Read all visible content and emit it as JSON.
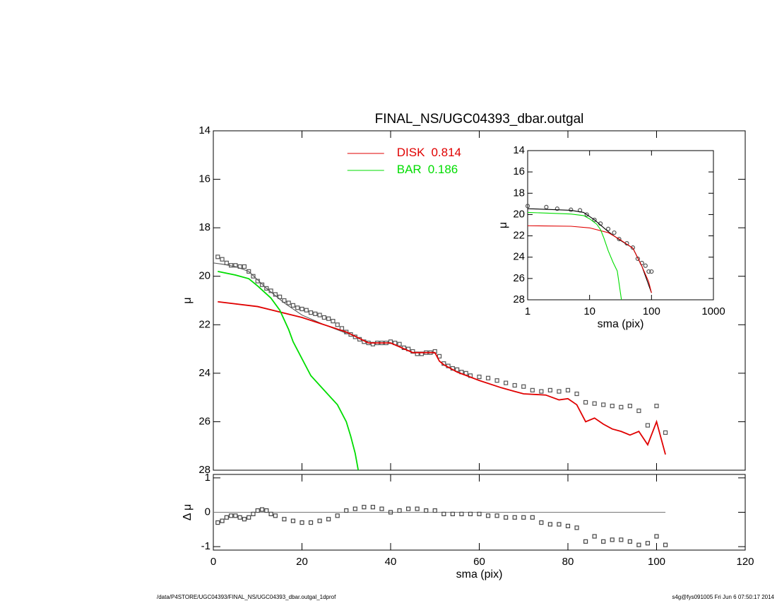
{
  "chart_data": [
    {
      "type": "line",
      "title": "FINAL_NS/UGC04393_dbar.outgal",
      "ylabel": "μ",
      "xlim": [
        0,
        120
      ],
      "ylim": [
        28,
        14
      ],
      "xticks": [
        0,
        20,
        40,
        60,
        80,
        100,
        120
      ],
      "yticks": [
        14,
        16,
        18,
        20,
        22,
        24,
        26,
        28
      ],
      "xticklabels": false,
      "legend": "upper-center",
      "series": [
        {
          "color": "#555555",
          "style": "line",
          "x": [
            0,
            2,
            5,
            8,
            12,
            16,
            20,
            25,
            30
          ],
          "values": [
            19.45,
            19.5,
            19.6,
            19.8,
            20.5,
            21.1,
            21.6,
            22.0,
            22.35
          ]
        },
        {
          "color": "#555555",
          "style": "square",
          "x": [
            1,
            2,
            3,
            4,
            5,
            6,
            7,
            8,
            9,
            10,
            11,
            12,
            13,
            14,
            15,
            16,
            17,
            18,
            19,
            20,
            21,
            22,
            23,
            24,
            25,
            26,
            27,
            28,
            29,
            30,
            31,
            32,
            33,
            34,
            35,
            36,
            37,
            38,
            39,
            40,
            41,
            42,
            43,
            44,
            45,
            46,
            47,
            48,
            49,
            50,
            51,
            52,
            53,
            54,
            55,
            56,
            57,
            58,
            60,
            62,
            64,
            66,
            68,
            70,
            72,
            74,
            76,
            78,
            80,
            82,
            84,
            86,
            88,
            90,
            92,
            94,
            96,
            98,
            100,
            102
          ],
          "values": [
            19.2,
            19.3,
            19.45,
            19.55,
            19.55,
            19.6,
            19.6,
            19.8,
            20.0,
            20.2,
            20.35,
            20.5,
            20.6,
            20.75,
            20.85,
            21.0,
            21.1,
            21.2,
            21.3,
            21.35,
            21.4,
            21.5,
            21.55,
            21.6,
            21.7,
            21.75,
            21.85,
            22.0,
            22.15,
            22.3,
            22.4,
            22.5,
            22.6,
            22.7,
            22.75,
            22.8,
            22.75,
            22.75,
            22.75,
            22.7,
            22.75,
            22.8,
            22.95,
            23.0,
            23.1,
            23.2,
            23.2,
            23.15,
            23.15,
            23.1,
            23.3,
            23.6,
            23.7,
            23.8,
            23.85,
            23.95,
            24.0,
            24.1,
            24.15,
            24.2,
            24.3,
            24.4,
            24.5,
            24.55,
            24.7,
            24.75,
            24.7,
            24.75,
            24.7,
            24.85,
            25.2,
            25.25,
            25.3,
            25.35,
            25.4,
            25.35,
            25.55,
            26.15,
            25.35,
            26.45
          ]
        },
        {
          "name": "DISK",
          "fraction": 0.814,
          "color": "#e00000",
          "style": "line",
          "x": [
            1,
            10,
            20,
            30,
            35,
            40,
            45,
            50,
            51,
            52,
            55,
            60,
            65,
            68,
            70,
            75,
            78,
            80,
            82,
            84,
            86,
            88,
            90,
            92,
            94,
            96,
            98,
            100,
            102
          ],
          "values": [
            21.05,
            21.25,
            21.7,
            22.3,
            22.75,
            22.75,
            23.15,
            23.15,
            23.5,
            23.65,
            23.95,
            24.3,
            24.6,
            24.75,
            24.85,
            24.9,
            25.1,
            25.05,
            25.3,
            26.0,
            25.85,
            26.1,
            26.3,
            26.4,
            26.55,
            26.4,
            26.95,
            26.0,
            27.35
          ]
        },
        {
          "name": "BAR",
          "fraction": 0.186,
          "color": "#00dd00",
          "style": "line",
          "x": [
            1,
            5,
            8,
            10,
            13,
            15,
            17,
            18,
            20,
            22,
            24,
            26,
            28,
            30,
            31,
            32,
            32.7
          ],
          "values": [
            19.8,
            19.95,
            20.1,
            20.4,
            20.9,
            21.4,
            22.2,
            22.7,
            23.4,
            24.1,
            24.5,
            24.9,
            25.3,
            26.0,
            26.6,
            27.3,
            28
          ]
        }
      ]
    },
    {
      "type": "line",
      "xlabel": "sma (pix)",
      "ylabel": "Δ μ",
      "xlim": [
        0,
        120
      ],
      "ylim": [
        -1.1,
        1.1
      ],
      "xticks": [
        0,
        20,
        40,
        60,
        80,
        100,
        120
      ],
      "yticks": [
        -1,
        0,
        1
      ],
      "series": [
        {
          "color": "#777777",
          "style": "line",
          "x": [
            0,
            102
          ],
          "values": [
            0,
            0
          ]
        },
        {
          "color": "#444444",
          "style": "square",
          "x": [
            1,
            2,
            3,
            4,
            5,
            6,
            7,
            8,
            9,
            10,
            11,
            12,
            13,
            14,
            16,
            18,
            20,
            22,
            24,
            26,
            28,
            30,
            32,
            34,
            36,
            38,
            40,
            42,
            44,
            46,
            48,
            50,
            52,
            54,
            56,
            58,
            60,
            62,
            64,
            66,
            68,
            70,
            72,
            74,
            76,
            78,
            80,
            82,
            84,
            86,
            88,
            90,
            92,
            94,
            96,
            98,
            100,
            102
          ],
          "values": [
            -0.3,
            -0.25,
            -0.15,
            -0.1,
            -0.1,
            -0.15,
            -0.2,
            -0.15,
            -0.05,
            0.05,
            0.08,
            0.05,
            -0.05,
            -0.1,
            -0.2,
            -0.25,
            -0.3,
            -0.3,
            -0.25,
            -0.2,
            -0.1,
            0.05,
            0.1,
            0.15,
            0.15,
            0.1,
            0,
            0.05,
            0.1,
            0.1,
            0.05,
            0.05,
            -0.05,
            -0.05,
            -0.05,
            -0.05,
            -0.05,
            -0.1,
            -0.1,
            -0.15,
            -0.15,
            -0.15,
            -0.15,
            -0.3,
            -0.35,
            -0.35,
            -0.4,
            -0.45,
            -0.85,
            -0.7,
            -0.85,
            -0.8,
            -0.8,
            -0.85,
            -0.95,
            -0.9,
            -0.7,
            -0.95
          ]
        }
      ]
    },
    {
      "type": "line",
      "xlabel": "sma (pix)",
      "ylabel": "μ",
      "xscale": "log",
      "xlim": [
        1,
        1000
      ],
      "ylim": [
        28,
        14
      ],
      "xticks": [
        1,
        10,
        100,
        1000
      ],
      "yticks": [
        14,
        16,
        18,
        20,
        22,
        24,
        26,
        28
      ],
      "series": [
        {
          "color": "#555555",
          "style": "circle",
          "x": [
            1,
            2,
            3,
            5,
            7,
            9,
            12,
            15,
            20,
            25,
            30,
            40,
            50,
            60,
            70,
            80,
            90,
            100
          ],
          "values": [
            19.2,
            19.3,
            19.45,
            19.55,
            19.6,
            20.0,
            20.5,
            20.85,
            21.35,
            21.7,
            22.3,
            22.7,
            23.1,
            24.15,
            24.55,
            24.8,
            25.35,
            25.35
          ]
        },
        {
          "color": "#000000",
          "style": "line",
          "x": [
            1,
            5,
            8,
            12,
            20,
            30,
            50,
            70,
            100
          ],
          "values": [
            19.45,
            19.6,
            19.8,
            20.5,
            21.6,
            22.35,
            23.15,
            24.85,
            27.35
          ]
        },
        {
          "color": "#e00000",
          "style": "line",
          "x": [
            1,
            5,
            10,
            20,
            30,
            50,
            70,
            90,
            100
          ],
          "values": [
            21.05,
            21.1,
            21.25,
            21.7,
            22.3,
            23.15,
            24.85,
            26.3,
            27.35
          ]
        },
        {
          "color": "#00dd00",
          "style": "line",
          "x": [
            1,
            5,
            8,
            10,
            13,
            15,
            17,
            20,
            24,
            28,
            32.7
          ],
          "values": [
            19.8,
            19.95,
            20.1,
            20.4,
            20.9,
            21.4,
            22.2,
            23.4,
            24.5,
            25.3,
            28
          ]
        }
      ]
    }
  ],
  "footer": {
    "left": "/data/P4STORE/UGC04393/FINAL_NS/UGC04393_dbar.outgal_1dprof",
    "right": "s4g@fys091005  Fri Jun  6 07:50:17 2014"
  }
}
